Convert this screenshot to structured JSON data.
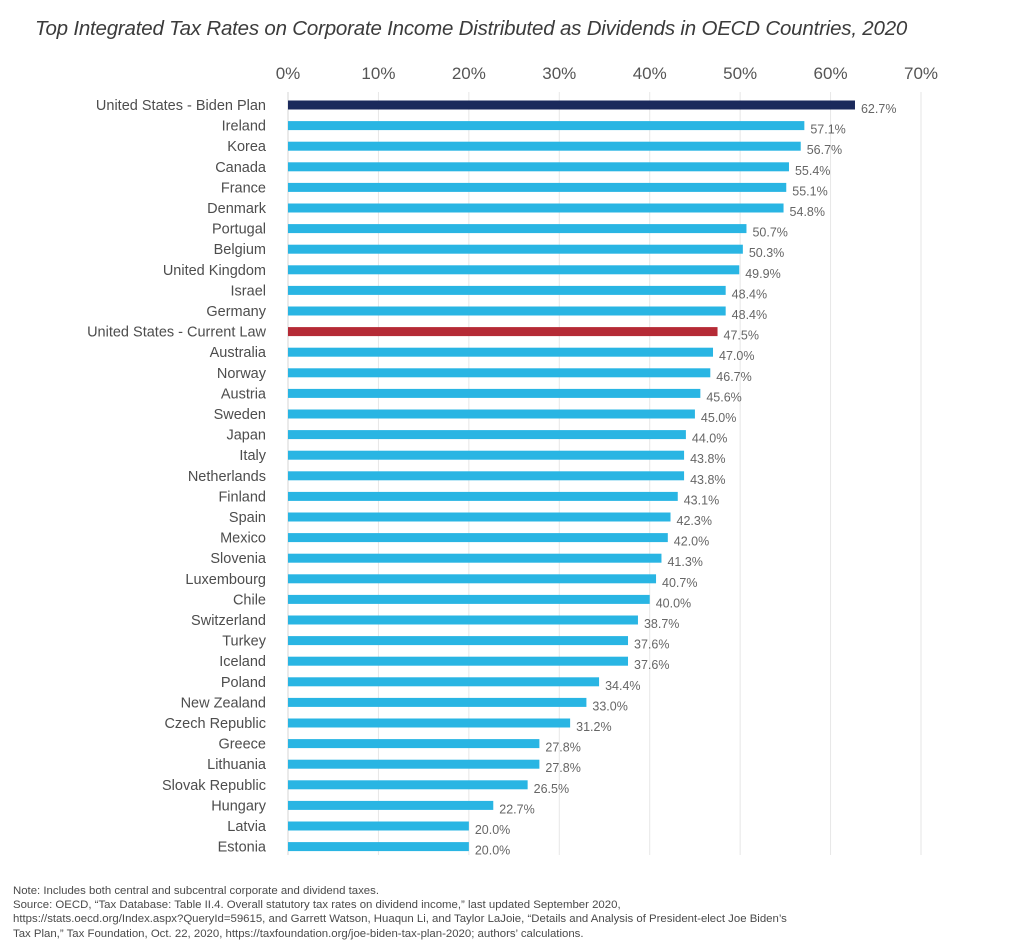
{
  "chart_data": {
    "type": "bar",
    "orientation": "horizontal",
    "title": "Top Integrated Tax Rates on Corporate Income Distributed as Dividends in OECD Countries, 2020",
    "xlabel": "",
    "ylabel": "",
    "xlim": [
      0,
      70
    ],
    "x_ticks": [
      "0%",
      "10%",
      "20%",
      "30%",
      "40%",
      "50%",
      "60%",
      "70%"
    ],
    "x_tick_values": [
      0,
      10,
      20,
      30,
      40,
      50,
      60,
      70
    ],
    "x_axis_position": "top",
    "grid": true,
    "value_suffix": "%",
    "colors": {
      "default": "#29b5e3",
      "biden_plan": "#1b2a5c",
      "current_law": "#b52a35",
      "grid": "#e6e6e6",
      "label": "#555555"
    },
    "categories": [
      "United States - Biden Plan",
      "Ireland",
      "Korea",
      "Canada",
      "France",
      "Denmark",
      "Portugal",
      "Belgium",
      "United Kingdom",
      "Israel",
      "Germany",
      "United States - Current Law",
      "Australia",
      "Norway",
      "Austria",
      "Sweden",
      "Japan",
      "Italy",
      "Netherlands",
      "Finland",
      "Spain",
      "Mexico",
      "Slovenia",
      "Luxembourg",
      "Chile",
      "Switzerland",
      "Turkey",
      "Iceland",
      "Poland",
      "New Zealand",
      "Czech Republic",
      "Greece",
      "Lithuania",
      "Slovak Republic",
      "Hungary",
      "Latvia",
      "Estonia"
    ],
    "values": [
      62.7,
      57.1,
      56.7,
      55.4,
      55.1,
      54.8,
      50.7,
      50.3,
      49.9,
      48.4,
      48.4,
      47.5,
      47.0,
      46.7,
      45.6,
      45.0,
      44.0,
      43.8,
      43.8,
      43.1,
      42.3,
      42.0,
      41.3,
      40.7,
      40.0,
      38.7,
      37.6,
      37.6,
      34.4,
      33.0,
      31.2,
      27.8,
      27.8,
      26.5,
      22.7,
      20.0,
      20.0
    ],
    "value_labels": [
      "62.7%",
      "57.1%",
      "56.7%",
      "55.4%",
      "55.1%",
      "54.8%",
      "50.7%",
      "50.3%",
      "49.9%",
      "48.4%",
      "48.4%",
      "47.5%",
      "47.0%",
      "46.7%",
      "45.6%",
      "45.0%",
      "44.0%",
      "43.8%",
      "43.8%",
      "43.1%",
      "42.3%",
      "42.0%",
      "41.3%",
      "40.7%",
      "40.0%",
      "38.7%",
      "37.6%",
      "37.6%",
      "34.4%",
      "33.0%",
      "31.2%",
      "27.8%",
      "27.8%",
      "26.5%",
      "22.7%",
      "20.0%",
      "20.0%"
    ],
    "highlight": {
      "United States - Biden Plan": "biden_plan",
      "United States - Current Law": "current_law"
    }
  },
  "footer": {
    "note": "Note: Includes both central and subcentral corporate and dividend taxes.",
    "source_lines": [
      "Source: OECD, “Tax Database: Table II.4. Overall statutory tax rates on dividend income,” last updated September 2020,",
      "https://stats.oecd.org/Index.aspx?QueryId=59615, and Garrett Watson, Huaqun Li, and Taylor LaJoie, “Details and Analysis of President-elect Joe Biden’s",
      "Tax Plan,” Tax Foundation, Oct. 22, 2020, https://taxfoundation.org/joe-biden-tax-plan-2020; authors’ calculations."
    ]
  }
}
